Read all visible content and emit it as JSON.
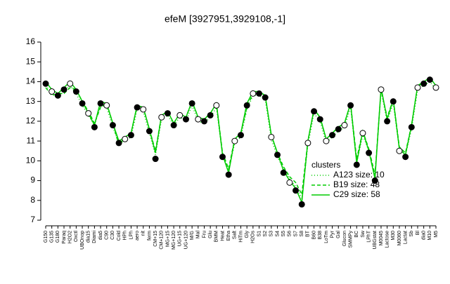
{
  "chart_data": {
    "type": "line",
    "title": "efeM [3927951,3929108,-1]",
    "categories": [
      "G150",
      "G135",
      "G180",
      "Paraq",
      "H2O2",
      "Oxctl",
      "UBOnop",
      "dia15",
      "Diami",
      "dia5",
      "C90",
      "C30",
      "Cold",
      "HPh",
      "LPh",
      "aero",
      "nit",
      "ferm",
      "CM+15",
      "CM+120",
      "MG+15",
      "MG+120",
      "UG+15",
      "UG+120",
      "M/G",
      "Mal",
      "Fru",
      "Glu",
      "BMM",
      "Heat",
      "Etha",
      "Salt",
      "HiTm",
      "Gly",
      "H2Os",
      "S1",
      "S2",
      "S3",
      "S4",
      "S5",
      "S6",
      "S7",
      "S8",
      "BT",
      "B60",
      "B38",
      "LoTm",
      "Pyr",
      "Gal",
      "Glucon",
      "SMMPy",
      "BC",
      "Sw",
      "LPhT",
      "UBGstat",
      "M0045",
      "Lactose",
      "M30",
      "M0060",
      "Lactat",
      "Sb",
      "Bl",
      "dia0",
      "M10",
      "M5"
    ],
    "ylim": [
      7,
      16
    ],
    "yticks": [
      7,
      8,
      9,
      10,
      11,
      12,
      13,
      14,
      15,
      16
    ],
    "legend_title": "clusters",
    "series": [
      {
        "name": "A123 size: 10",
        "color": "#00cc00",
        "style": "dotted",
        "values": [
          13.8,
          13.4,
          13.2,
          13.5,
          13.8,
          13.4,
          12.8,
          12.3,
          11.8,
          12.8,
          12.7,
          11.7,
          10.9,
          11.0,
          11.2,
          12.6,
          12.5,
          11.4,
          10.3,
          12.1,
          12.3,
          11.8,
          12.2,
          12.0,
          12.8,
          12.0,
          11.9,
          12.2,
          12.7,
          10.3,
          9.5,
          10.9,
          11.2,
          12.6,
          13.3,
          13.3,
          13.1,
          11.1,
          10.2,
          9.6,
          9.1,
          8.7,
          8.1,
          10.8,
          12.4,
          12.0,
          10.9,
          11.2,
          11.5,
          11.7,
          12.7,
          9.9,
          11.3,
          10.5,
          9.2,
          13.5,
          12.0,
          12.9,
          10.6,
          10.3,
          11.6,
          13.6,
          13.8,
          14.0,
          13.6
        ]
      },
      {
        "name": "B19 size: 48",
        "color": "#00cc00",
        "style": "dashed",
        "values": [
          13.7,
          13.3,
          13.4,
          13.4,
          13.7,
          13.6,
          13.0,
          12.5,
          11.9,
          12.7,
          12.9,
          11.9,
          10.8,
          11.2,
          11.4,
          12.8,
          12.7,
          11.6,
          10.5,
          12.3,
          12.5,
          11.9,
          12.4,
          12.2,
          13.0,
          12.2,
          12.1,
          12.4,
          12.9,
          10.4,
          9.6,
          11.1,
          11.4,
          12.7,
          13.4,
          13.5,
          13.3,
          11.3,
          10.4,
          9.7,
          9.2,
          8.9,
          8.3,
          11.0,
          12.6,
          12.2,
          11.1,
          11.4,
          11.7,
          11.9,
          12.9,
          10.1,
          11.5,
          10.6,
          9.3,
          13.6,
          12.2,
          13.1,
          10.7,
          10.4,
          11.8,
          13.8,
          13.9,
          14.2,
          13.8
        ]
      },
      {
        "name": "C29 size: 58",
        "color": "#00cc00",
        "style": "solid",
        "values": [
          14.0,
          13.6,
          13.4,
          13.7,
          14.0,
          13.6,
          13.0,
          12.4,
          11.8,
          13.0,
          12.9,
          11.9,
          11.0,
          11.2,
          11.4,
          12.8,
          12.7,
          11.6,
          10.4,
          12.3,
          12.5,
          11.9,
          12.4,
          12.2,
          13.0,
          12.2,
          12.1,
          12.4,
          12.9,
          10.3,
          9.4,
          11.1,
          11.4,
          12.9,
          13.5,
          13.5,
          13.3,
          11.3,
          10.4,
          9.5,
          9.0,
          8.6,
          7.9,
          11.0,
          12.6,
          12.2,
          11.1,
          11.4,
          11.7,
          11.9,
          12.9,
          9.9,
          11.5,
          10.5,
          9.1,
          13.7,
          12.1,
          13.1,
          10.6,
          10.3,
          11.8,
          13.8,
          14.0,
          14.2,
          13.8
        ]
      }
    ],
    "points": [
      13.9,
      13.5,
      13.3,
      13.6,
      13.9,
      13.5,
      12.9,
      12.4,
      11.7,
      12.9,
      12.8,
      11.8,
      10.9,
      11.1,
      11.3,
      12.7,
      12.6,
      11.5,
      10.1,
      12.2,
      12.4,
      11.8,
      12.3,
      12.1,
      12.9,
      12.1,
      12.0,
      12.3,
      12.8,
      10.2,
      9.3,
      11.0,
      11.3,
      12.8,
      13.4,
      13.4,
      13.2,
      11.2,
      10.3,
      9.4,
      8.9,
      8.5,
      7.8,
      10.9,
      12.5,
      12.1,
      11.0,
      11.3,
      11.6,
      11.8,
      12.8,
      9.8,
      11.4,
      10.4,
      9.0,
      13.6,
      12.0,
      13.0,
      10.5,
      10.2,
      11.7,
      13.7,
      13.9,
      14.1,
      13.7
    ],
    "points_color": "#000000",
    "legend": "right"
  }
}
